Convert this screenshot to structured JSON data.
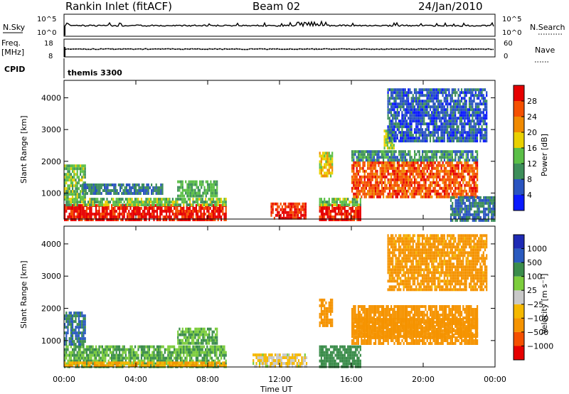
{
  "header": {
    "station": "Rankin Inlet (fitACF)",
    "beam": "Beam 02",
    "date": "24/Jan/2010"
  },
  "top_panels": {
    "nsky_label": "N.Sky",
    "nsky_ticks": [
      "10^5",
      "10^0"
    ],
    "nsearch_ticks": [
      "10^5",
      "10^0"
    ],
    "nsearch_label": "N.Search",
    "freq_label_1": "Freq.",
    "freq_label_2": "[MHz]",
    "freq_ticks": [
      "18",
      "8"
    ],
    "nave_ticks": [
      "60",
      "0"
    ],
    "nave_label": "Nave",
    "cpid_label": "CPID",
    "cpid_value": "themis 3300"
  },
  "colors": {
    "power": [
      "#0a1aff",
      "#2a54c0",
      "#3d8e5a",
      "#5bbf47",
      "#e9d000",
      "#f08a00",
      "#f55000",
      "#e60000"
    ],
    "velocity": [
      "#e60000",
      "#f55000",
      "#f59300",
      "#f5b800",
      "#c8c8c8",
      "#7ccd3c",
      "#3a8c4a",
      "#2a5abf",
      "#1e2ab4"
    ]
  },
  "chart_data": [
    {
      "type": "heatmap",
      "title": "",
      "xlabel": "",
      "ylabel": "Slant Range [km]",
      "y_ticks": [
        "4000",
        "3000",
        "2000",
        "1000"
      ],
      "y_tick_values": [
        4000,
        3000,
        2000,
        1000
      ],
      "ylim": [
        180,
        4550
      ],
      "x_ticks": [
        "00:00",
        "04:00",
        "08:00",
        "12:00",
        "16:00",
        "20:00",
        "00:00"
      ],
      "x_hours": [
        0,
        4,
        8,
        12,
        16,
        20,
        24
      ],
      "colorbar_label": "Power [dB]",
      "colorbar_ticks": [
        "28",
        "24",
        "20",
        "16",
        "12",
        "8",
        "4"
      ],
      "colorbar_values": [
        28,
        24,
        20,
        16,
        12,
        8,
        4
      ],
      "colorbar_range": [
        0,
        32
      ],
      "regions": [
        {
          "t0": 0.0,
          "t1": 9.0,
          "r0": 180,
          "r1": 650,
          "level": 30
        },
        {
          "t0": 0.0,
          "t1": 9.0,
          "r0": 650,
          "r1": 850,
          "level": 14
        },
        {
          "t0": 0.0,
          "t1": 1.2,
          "r0": 850,
          "r1": 1900,
          "level": 14
        },
        {
          "t0": 1.0,
          "t1": 5.5,
          "r0": 1000,
          "r1": 1300,
          "level": 8
        },
        {
          "t0": 6.3,
          "t1": 8.5,
          "r0": 900,
          "r1": 1400,
          "level": 12
        },
        {
          "t0": 11.5,
          "t1": 13.5,
          "r0": 180,
          "r1": 700,
          "level": 28
        },
        {
          "t0": 14.2,
          "t1": 16.5,
          "r0": 180,
          "r1": 650,
          "level": 30
        },
        {
          "t0": 14.2,
          "t1": 16.5,
          "r0": 650,
          "r1": 850,
          "level": 14
        },
        {
          "t0": 14.2,
          "t1": 14.9,
          "r0": 1500,
          "r1": 2300,
          "level": 18
        },
        {
          "t0": 16.0,
          "t1": 23.0,
          "r0": 900,
          "r1": 2000,
          "level": 26
        },
        {
          "t0": 16.0,
          "t1": 23.0,
          "r0": 2000,
          "r1": 2350,
          "level": 10
        },
        {
          "t0": 17.8,
          "t1": 18.4,
          "r0": 2400,
          "r1": 3000,
          "level": 16
        },
        {
          "t0": 18.0,
          "t1": 23.5,
          "r0": 2600,
          "r1": 4300,
          "level": 6
        },
        {
          "t0": 21.5,
          "t1": 24.0,
          "r0": 180,
          "r1": 900,
          "level": 8
        }
      ]
    },
    {
      "type": "heatmap",
      "title": "",
      "xlabel": "Time UT",
      "ylabel": "Slant Range [km]",
      "y_ticks": [
        "4000",
        "3000",
        "2000",
        "1000"
      ],
      "y_tick_values": [
        4000,
        3000,
        2000,
        1000
      ],
      "ylim": [
        180,
        4550
      ],
      "x_ticks": [
        "00:00",
        "04:00",
        "08:00",
        "12:00",
        "16:00",
        "20:00",
        "00:00"
      ],
      "x_hours": [
        0,
        4,
        8,
        12,
        16,
        20,
        24
      ],
      "colorbar_label": "Velocity [m s⁻¹]",
      "colorbar_ticks": [
        "1000",
        "500",
        "100",
        "25",
        "−25",
        "−100",
        "−500",
        "−1000"
      ],
      "colorbar_values": [
        1000,
        500,
        100,
        25,
        -25,
        -100,
        -500,
        -1000
      ],
      "regions": [
        {
          "t0": 0.0,
          "t1": 9.0,
          "r0": 180,
          "r1": 850,
          "level": 100
        },
        {
          "t0": 0.0,
          "t1": 9.0,
          "r0": 180,
          "r1": 350,
          "level": -100
        },
        {
          "t0": 0.0,
          "t1": 1.2,
          "r0": 850,
          "r1": 1900,
          "level": 500
        },
        {
          "t0": 6.3,
          "t1": 8.5,
          "r0": 900,
          "r1": 1400,
          "level": 100
        },
        {
          "t0": 10.5,
          "t1": 13.5,
          "r0": 180,
          "r1": 600,
          "level": -25
        },
        {
          "t0": 14.2,
          "t1": 16.5,
          "r0": 180,
          "r1": 850,
          "level": 300
        },
        {
          "t0": 14.2,
          "t1": 14.9,
          "r0": 1500,
          "r1": 2300,
          "level": -200
        },
        {
          "t0": 16.0,
          "t1": 23.0,
          "r0": 900,
          "r1": 2100,
          "level": -200
        },
        {
          "t0": 16.0,
          "t1": 23.0,
          "r0": 1100,
          "r1": 1700,
          "level": -400
        },
        {
          "t0": 18.0,
          "t1": 23.5,
          "r0": 2600,
          "r1": 4300,
          "level": -150
        }
      ]
    }
  ]
}
